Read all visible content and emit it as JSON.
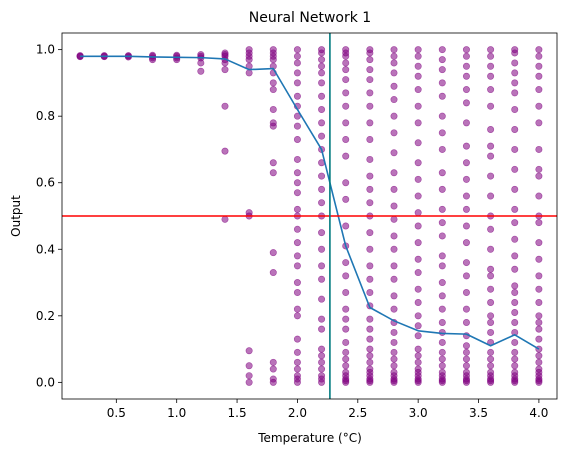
{
  "chart_data": {
    "type": "scatter",
    "title": "Neural Network 1",
    "xlabel": "Temperature (°C)",
    "ylabel": "Output",
    "xlim": [
      0.05,
      4.15
    ],
    "ylim": [
      -0.05,
      1.05
    ],
    "xticks": [
      "0.5",
      "1.0",
      "1.5",
      "2.0",
      "2.5",
      "3.0",
      "3.5",
      "4.0"
    ],
    "xtick_values": [
      0.5,
      1.0,
      1.5,
      2.0,
      2.5,
      3.0,
      3.5,
      4.0
    ],
    "yticks": [
      "0.0",
      "0.2",
      "0.4",
      "0.6",
      "0.8",
      "1.0"
    ],
    "ytick_values": [
      0.0,
      0.2,
      0.4,
      0.6,
      0.8,
      1.0
    ],
    "grid": false,
    "scatter_color": "#800080",
    "line_color": "#1f77b4",
    "hline_color": "#ff0000",
    "vline_color": "#007b7f",
    "hline_y": 0.5,
    "vline_x": 2.269,
    "mean_line": {
      "x": [
        0.2,
        0.4,
        0.6,
        0.8,
        1.0,
        1.2,
        1.4,
        1.6,
        1.8,
        2.0,
        2.2,
        2.4,
        2.6,
        2.8,
        3.0,
        3.2,
        3.4,
        3.6,
        3.8,
        4.0
      ],
      "y": [
        0.98,
        0.98,
        0.98,
        0.978,
        0.977,
        0.976,
        0.972,
        0.94,
        0.943,
        0.82,
        0.7,
        0.41,
        0.225,
        0.185,
        0.155,
        0.147,
        0.145,
        0.11,
        0.143,
        0.1
      ]
    },
    "scatter_groups": [
      {
        "x": 0.2,
        "y": [
          0.98,
          0.982,
          0.979
        ]
      },
      {
        "x": 0.4,
        "y": [
          0.98,
          0.982,
          0.979
        ]
      },
      {
        "x": 0.6,
        "y": [
          0.98,
          0.982,
          0.978
        ]
      },
      {
        "x": 0.8,
        "y": [
          0.975,
          0.98,
          0.983,
          0.97
        ]
      },
      {
        "x": 1.0,
        "y": [
          0.975,
          0.98,
          0.983,
          0.97
        ]
      },
      {
        "x": 1.2,
        "y": [
          0.935,
          0.96,
          0.975,
          0.98,
          0.985
        ]
      },
      {
        "x": 1.4,
        "y": [
          0.49,
          0.695,
          0.83,
          0.94,
          0.96,
          0.97,
          0.98,
          0.985,
          0.99
        ]
      },
      {
        "x": 1.6,
        "y": [
          0.0,
          0.02,
          0.05,
          0.095,
          0.5,
          0.51,
          0.93,
          0.95,
          0.97,
          0.98,
          0.99,
          1.0
        ]
      },
      {
        "x": 1.8,
        "y": [
          0.0,
          0.01,
          0.04,
          0.06,
          0.33,
          0.39,
          0.63,
          0.66,
          0.77,
          0.78,
          0.82,
          0.88,
          0.9,
          0.93,
          0.95,
          0.97,
          0.98,
          0.99,
          1.0
        ]
      },
      {
        "x": 2.0,
        "y": [
          0.0,
          0.01,
          0.02,
          0.04,
          0.06,
          0.09,
          0.13,
          0.2,
          0.22,
          0.27,
          0.3,
          0.35,
          0.38,
          0.42,
          0.46,
          0.5,
          0.52,
          0.57,
          0.6,
          0.63,
          0.67,
          0.73,
          0.77,
          0.8,
          0.83,
          0.86,
          0.9,
          0.93,
          0.96,
          0.98,
          1.0
        ]
      },
      {
        "x": 2.2,
        "y": [
          0.0,
          0.01,
          0.02,
          0.04,
          0.06,
          0.08,
          0.1,
          0.16,
          0.19,
          0.25,
          0.31,
          0.35,
          0.4,
          0.45,
          0.5,
          0.54,
          0.58,
          0.62,
          0.66,
          0.7,
          0.74,
          0.78,
          0.82,
          0.86,
          0.9,
          0.93,
          0.95,
          0.97,
          0.99,
          1.0
        ]
      },
      {
        "x": 2.4,
        "y": [
          0.0,
          0.005,
          0.01,
          0.02,
          0.03,
          0.05,
          0.07,
          0.09,
          0.12,
          0.16,
          0.19,
          0.22,
          0.27,
          0.32,
          0.36,
          0.41,
          0.47,
          0.55,
          0.6,
          0.68,
          0.73,
          0.78,
          0.83,
          0.87,
          0.91,
          0.94,
          0.96,
          0.98,
          0.99,
          1.0
        ]
      },
      {
        "x": 2.6,
        "y": [
          0.0,
          0.005,
          0.01,
          0.02,
          0.03,
          0.04,
          0.06,
          0.08,
          0.1,
          0.13,
          0.16,
          0.19,
          0.23,
          0.27,
          0.31,
          0.35,
          0.4,
          0.45,
          0.5,
          0.54,
          0.58,
          0.62,
          0.67,
          0.73,
          0.78,
          0.83,
          0.87,
          0.91,
          0.94,
          0.97,
          0.99,
          1.0
        ]
      },
      {
        "x": 2.8,
        "y": [
          0.0,
          0.005,
          0.01,
          0.02,
          0.03,
          0.05,
          0.07,
          0.09,
          0.12,
          0.15,
          0.18,
          0.22,
          0.26,
          0.31,
          0.35,
          0.4,
          0.44,
          0.49,
          0.53,
          0.58,
          0.63,
          0.69,
          0.75,
          0.8,
          0.85,
          0.89,
          0.93,
          0.96,
          0.98,
          1.0
        ]
      },
      {
        "x": 3.0,
        "y": [
          0.0,
          0.005,
          0.01,
          0.02,
          0.03,
          0.04,
          0.06,
          0.08,
          0.1,
          0.14,
          0.17,
          0.2,
          0.24,
          0.28,
          0.33,
          0.37,
          0.42,
          0.47,
          0.51,
          0.56,
          0.61,
          0.66,
          0.72,
          0.78,
          0.83,
          0.88,
          0.92,
          0.95,
          0.98,
          1.0
        ]
      },
      {
        "x": 3.2,
        "y": [
          0.0,
          0.005,
          0.01,
          0.02,
          0.03,
          0.05,
          0.07,
          0.09,
          0.12,
          0.15,
          0.18,
          0.22,
          0.26,
          0.3,
          0.35,
          0.38,
          0.44,
          0.48,
          0.52,
          0.58,
          0.63,
          0.7,
          0.75,
          0.8,
          0.86,
          0.9,
          0.94,
          0.97,
          1.0
        ]
      },
      {
        "x": 3.4,
        "y": [
          0.0,
          0.005,
          0.01,
          0.02,
          0.03,
          0.05,
          0.07,
          0.09,
          0.11,
          0.14,
          0.18,
          0.22,
          0.27,
          0.32,
          0.36,
          0.42,
          0.47,
          0.52,
          0.56,
          0.61,
          0.66,
          0.71,
          0.78,
          0.84,
          0.88,
          0.92,
          0.95,
          0.98,
          1.0
        ]
      },
      {
        "x": 3.6,
        "y": [
          0.0,
          0.005,
          0.01,
          0.02,
          0.03,
          0.05,
          0.07,
          0.09,
          0.12,
          0.15,
          0.18,
          0.2,
          0.24,
          0.28,
          0.32,
          0.34,
          0.4,
          0.46,
          0.5,
          0.56,
          0.62,
          0.68,
          0.71,
          0.76,
          0.83,
          0.88,
          0.92,
          0.95,
          0.98,
          1.0
        ]
      },
      {
        "x": 3.8,
        "y": [
          0.0,
          0.005,
          0.01,
          0.02,
          0.03,
          0.05,
          0.07,
          0.09,
          0.12,
          0.15,
          0.18,
          0.21,
          0.24,
          0.27,
          0.29,
          0.34,
          0.38,
          0.43,
          0.48,
          0.52,
          0.58,
          0.64,
          0.7,
          0.76,
          0.82,
          0.87,
          0.9,
          0.93,
          0.96,
          0.99,
          1.0
        ]
      },
      {
        "x": 4.0,
        "y": [
          0.0,
          0.005,
          0.01,
          0.02,
          0.03,
          0.04,
          0.06,
          0.08,
          0.1,
          0.13,
          0.16,
          0.18,
          0.2,
          0.24,
          0.28,
          0.32,
          0.37,
          0.42,
          0.48,
          0.5,
          0.56,
          0.62,
          0.64,
          0.7,
          0.78,
          0.83,
          0.88,
          0.92,
          0.95,
          0.98,
          1.0
        ]
      }
    ]
  }
}
